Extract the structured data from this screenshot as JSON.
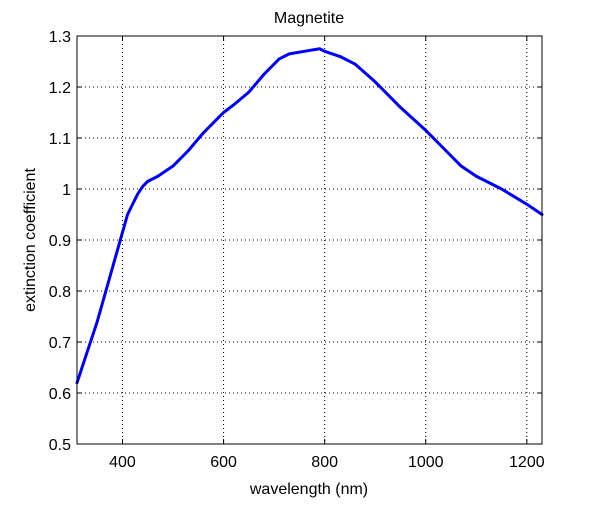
{
  "chart_data": {
    "type": "line",
    "title": "Magnetite",
    "xlabel": "wavelength (nm)",
    "ylabel": "extinction coefficient",
    "xlim": [
      310,
      1230
    ],
    "ylim": [
      0.5,
      1.3
    ],
    "xticks": [
      400,
      600,
      800,
      1000,
      1200
    ],
    "yticks": [
      0.5,
      0.6,
      0.7,
      0.8,
      0.9,
      1.0,
      1.1,
      1.2,
      1.3
    ],
    "xtick_labels": [
      "400",
      "600",
      "800",
      "1000",
      "1200"
    ],
    "ytick_labels": [
      "0.5",
      "0.6",
      "0.7",
      "0.8",
      "0.9",
      "1",
      "1.1",
      "1.2",
      "1.3"
    ],
    "grid": true,
    "line_color": "#0000ff",
    "series": [
      {
        "name": "",
        "x": [
          310,
          330,
          350,
          370,
          390,
          410,
          430,
          440,
          450,
          470,
          500,
          530,
          560,
          590,
          600,
          620,
          650,
          680,
          710,
          730,
          760,
          790,
          800,
          830,
          860,
          900,
          950,
          1000,
          1040,
          1070,
          1100,
          1150,
          1200,
          1230
        ],
        "y": [
          0.62,
          0.68,
          0.74,
          0.81,
          0.88,
          0.95,
          0.99,
          1.005,
          1.015,
          1.025,
          1.045,
          1.075,
          1.11,
          1.14,
          1.15,
          1.165,
          1.19,
          1.225,
          1.255,
          1.265,
          1.27,
          1.275,
          1.27,
          1.26,
          1.245,
          1.21,
          1.16,
          1.115,
          1.075,
          1.045,
          1.025,
          1.0,
          0.97,
          0.95
        ]
      }
    ]
  }
}
